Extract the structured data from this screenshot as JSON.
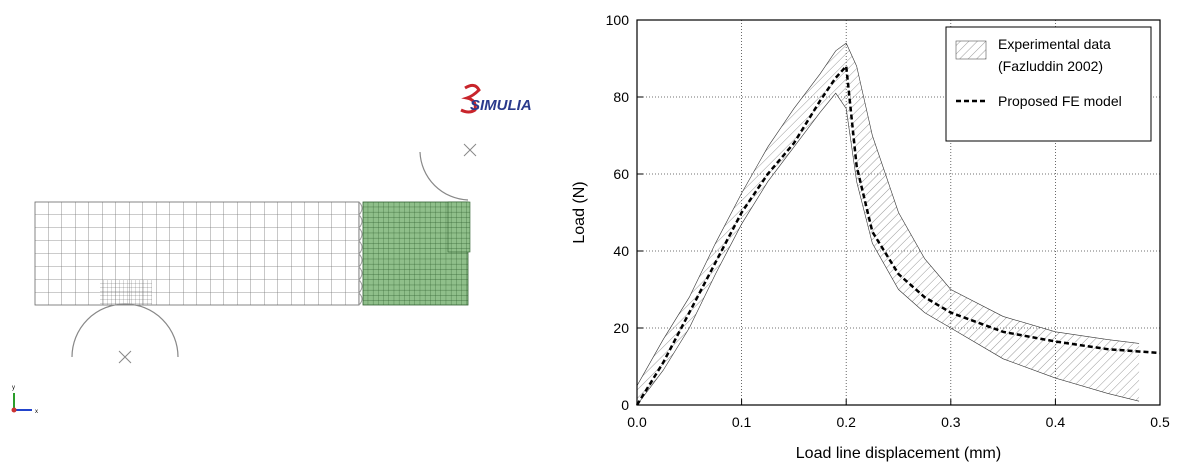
{
  "logo": "SIMULIA",
  "triad": {
    "x": "x",
    "y": "y"
  },
  "chart_data": {
    "type": "line",
    "xlabel": "Load line displacement (mm)",
    "ylabel": "Load (N)",
    "xlim": [
      0,
      0.5
    ],
    "ylim": [
      0,
      100
    ],
    "xticks": [
      {
        "value": 0,
        "label": "0.0"
      },
      0.1,
      0.2,
      0.3,
      0.4,
      0.5
    ],
    "yticks": [
      0,
      20,
      40,
      60,
      80,
      100
    ],
    "grid": true,
    "legend": "upper right",
    "series": [
      {
        "name": "Experimental data (Fazluddin 2002)",
        "color": "#333333",
        "x": [
          0,
          0.025,
          0.05,
          0.075,
          0.1,
          0.125,
          0.15,
          0.175,
          0.19,
          0.2,
          0.21,
          0.225,
          0.25,
          0.275,
          0.3,
          0.35,
          0.4,
          0.45,
          0.48
        ],
        "lower": [
          0,
          9,
          20,
          34,
          47,
          58,
          67,
          76,
          81,
          77,
          58,
          42,
          30,
          24,
          20,
          12,
          7,
          3,
          1
        ],
        "upper": [
          5,
          17,
          28,
          42,
          55,
          67,
          77,
          86,
          92,
          94,
          88,
          70,
          50,
          38,
          30,
          23,
          19,
          17,
          16
        ]
      },
      {
        "name": "Proposed FE model",
        "color": "#000000",
        "x": [
          0,
          0.025,
          0.05,
          0.075,
          0.1,
          0.125,
          0.15,
          0.175,
          0.19,
          0.2,
          0.21,
          0.225,
          0.25,
          0.275,
          0.3,
          0.35,
          0.4,
          0.45,
          0.5
        ],
        "values": [
          0,
          11,
          24,
          37,
          50,
          60,
          68,
          79,
          85,
          88,
          62,
          45,
          34,
          28,
          24,
          19,
          16.5,
          14.5,
          13.5
        ]
      }
    ]
  }
}
